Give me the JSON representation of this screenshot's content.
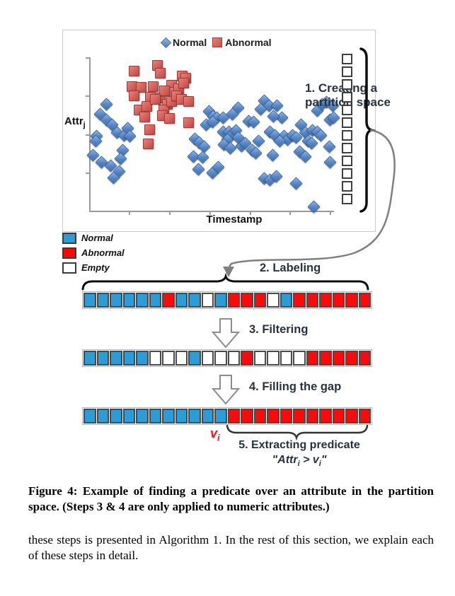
{
  "figure": {
    "chart": {
      "legend_normal": "Normal",
      "legend_abnormal": "Abnormal",
      "y_axis_label": "Attr",
      "y_axis_sub": "j",
      "x_axis_label": "Timestamp"
    },
    "chart_data": {
      "type": "scatter",
      "xlabel": "Timestamp",
      "ylabel": "Attr_j",
      "axes_numeric": false,
      "legend_position": "top-center",
      "legend": [
        "Normal",
        "Abnormal"
      ],
      "units": "pixel positions within 441x284 plot box (no numeric axis labels shown)",
      "series": [
        {
          "name": "Normal",
          "marker": "diamond",
          "color": "#5585C4",
          "points": [
            [
              61,
              104
            ],
            [
              52,
              118
            ],
            [
              61,
              126
            ],
            [
              69,
              133
            ],
            [
              47,
              149
            ],
            [
              46,
              156
            ],
            [
              42,
              176
            ],
            [
              76,
              144
            ],
            [
              86,
              148
            ],
            [
              91,
              138
            ],
            [
              94,
              149
            ],
            [
              84,
              169
            ],
            [
              81,
              181
            ],
            [
              54,
              186
            ],
            [
              67,
              191
            ],
            [
              79,
              199
            ],
            [
              71,
              208
            ],
            [
              206,
              114
            ],
            [
              212,
              121
            ],
            [
              217,
              123
            ],
            [
              202,
              133
            ],
            [
              211,
              129
            ],
            [
              186,
              153
            ],
            [
              192,
              158
            ],
            [
              199,
              164
            ],
            [
              184,
              178
            ],
            [
              197,
              179
            ],
            [
              191,
              196
            ],
            [
              211,
              201
            ],
            [
              219,
              193
            ],
            [
              226,
              143
            ],
            [
              234,
              143
            ],
            [
              239,
              146
            ],
            [
              244,
              141
            ],
            [
              232,
              154
            ],
            [
              247,
              151
            ],
            [
              227,
              161
            ],
            [
              236,
              166
            ],
            [
              252,
              163
            ],
            [
              257,
              159
            ],
            [
              247,
              109
            ],
            [
              239,
              118
            ],
            [
              226,
              123
            ],
            [
              262,
              128
            ],
            [
              269,
              129
            ],
            [
              276,
              156
            ],
            [
              267,
              169
            ],
            [
              272,
              173
            ],
            [
              284,
              99
            ],
            [
              291,
              106
            ],
            [
              279,
              111
            ],
            [
              302,
              106
            ],
            [
              309,
              123
            ],
            [
              297,
              121
            ],
            [
              292,
              143
            ],
            [
              299,
              148
            ],
            [
              312,
              149
            ],
            [
              317,
              154
            ],
            [
              306,
              156
            ],
            [
              296,
              176
            ],
            [
              284,
              209
            ],
            [
              292,
              211
            ],
            [
              301,
              206
            ],
            [
              324,
              148
            ],
            [
              329,
              151
            ],
            [
              336,
              133
            ],
            [
              342,
              144
            ],
            [
              346,
              156
            ],
            [
              334,
              171
            ],
            [
              342,
              178
            ],
            [
              329,
              216
            ],
            [
              352,
              141
            ],
            [
              359,
              143
            ],
            [
              364,
              148
            ],
            [
              351,
              159
            ],
            [
              359,
              113
            ],
            [
              366,
              104
            ],
            [
              372,
              101
            ],
            [
              381,
              106
            ],
            [
              377,
              126
            ],
            [
              382,
              123
            ],
            [
              376,
              164
            ],
            [
              377,
              186
            ],
            [
              354,
              249
            ]
          ]
        },
        {
          "name": "Abnormal",
          "marker": "square",
          "color": "#D4605A",
          "points": [
            [
              99,
              56
            ],
            [
              132,
              48
            ],
            [
              136,
              59
            ],
            [
              167,
              63
            ],
            [
              172,
              66
            ],
            [
              96,
              78
            ],
            [
              109,
              79
            ],
            [
              126,
              78
            ],
            [
              99,
              91
            ],
            [
              122,
              93
            ],
            [
              136,
              94
            ],
            [
              152,
              76
            ],
            [
              156,
              86
            ],
            [
              162,
              81
            ],
            [
              169,
              73
            ],
            [
              106,
              111
            ],
            [
              117,
              106
            ],
            [
              142,
              84
            ],
            [
              146,
              103
            ],
            [
              141,
              111
            ],
            [
              152,
              99
            ],
            [
              159,
              91
            ],
            [
              166,
              96
            ],
            [
              176,
              99
            ],
            [
              114,
              121
            ],
            [
              129,
              96
            ],
            [
              139,
              119
            ],
            [
              149,
              123
            ],
            [
              121,
              139
            ],
            [
              176,
              129
            ],
            [
              119,
              159
            ]
          ]
        }
      ]
    },
    "partition_space": {
      "squares": 12
    },
    "steps": {
      "step1": "1. Creating a partition space",
      "step2": "2. Labeling",
      "step3": "3. Filtering",
      "step4": "4. Filling the gap",
      "step5": "5. Extracting predicate"
    },
    "side_legend": [
      {
        "label": "Normal",
        "color": "#2D9BD6"
      },
      {
        "label": "Abnormal",
        "color": "#FF0505"
      },
      {
        "label": "Empty",
        "color": "#FFFFFF"
      }
    ],
    "rows": {
      "labeling": [
        "B",
        "B",
        "B",
        "B",
        "B",
        "B",
        "R",
        "B",
        "B",
        "W",
        "B",
        "R",
        "R",
        "R",
        "W",
        "B",
        "R",
        "R",
        "R",
        "R",
        "R",
        "R"
      ],
      "filtering": [
        "B",
        "B",
        "B",
        "B",
        "B",
        "W",
        "W",
        "W",
        "B",
        "W",
        "W",
        "W",
        "R",
        "W",
        "W",
        "W",
        "W",
        "R",
        "R",
        "R",
        "R",
        "R"
      ],
      "filled": [
        "B",
        "B",
        "B",
        "B",
        "B",
        "B",
        "B",
        "B",
        "B",
        "B",
        "B",
        "R",
        "R",
        "R",
        "R",
        "R",
        "R",
        "R",
        "R",
        "R",
        "R",
        "R"
      ]
    },
    "cell_colors": {
      "B": "#2D9BD6",
      "R": "#FA0A0A",
      "W": "#FFFFFF"
    },
    "boundary_label": {
      "base": "v",
      "sub": "i"
    },
    "predicate": {
      "open": "\"Attr",
      "sub1": "i",
      "mid": " > v",
      "sub2": "i",
      "close": "\""
    }
  },
  "caption": "Figure 4: Example of finding a predicate over an attribute in the partition space. (Steps 3 & 4 are only applied to numeric attributes.)",
  "body": "these steps is presented in Algorithm 1. In the rest of this section, we explain each of these steps in detail."
}
